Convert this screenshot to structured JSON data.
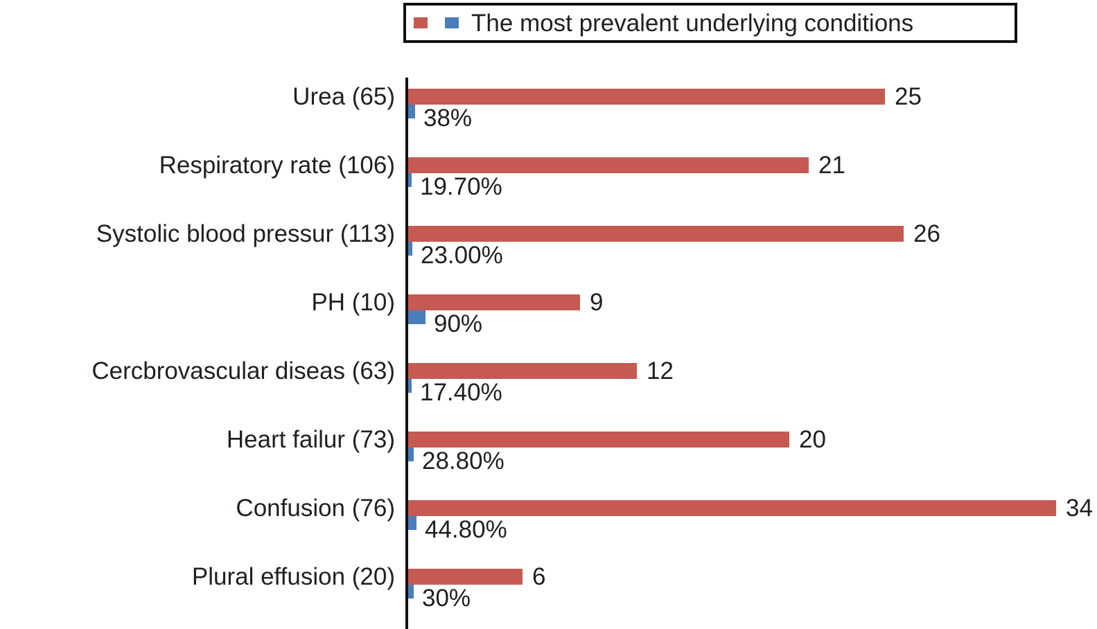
{
  "legend": {
    "title": "The most prevalent underlying conditions",
    "markers": [
      {
        "name": "count-marker",
        "color": "#C55A52"
      },
      {
        "name": "percent-marker",
        "color": "#4A7EBB"
      }
    ]
  },
  "chart_data": {
    "type": "bar",
    "orientation": "horizontal",
    "title": "The most prevalent underlying conditions",
    "xlabel": "",
    "ylabel": "",
    "xlim": [
      0,
      36
    ],
    "grid": false,
    "legend_position": "top",
    "categories": [
      "Urea (65)",
      "Respiratory rate (106)",
      "Systolic blood pressur (113)",
      "PH (10)",
      "Cercbrovascular diseas (63)",
      "Heart failur (73)",
      "Confusion (76)",
      "Plural effusion (20)"
    ],
    "series": [
      {
        "name": "count",
        "color": "#C55A52",
        "values": [
          25,
          21,
          26,
          9,
          12,
          20,
          34,
          6
        ]
      },
      {
        "name": "percent",
        "color": "#4A7EBB",
        "values": [
          38,
          19.7,
          23.0,
          90,
          17.4,
          28.8,
          44.8,
          30
        ]
      }
    ],
    "rows": [
      {
        "label": "Urea (65)",
        "count": 25,
        "count_label": "25",
        "percent": 38,
        "percent_label": "38%"
      },
      {
        "label": "Respiratory rate (106)",
        "count": 21,
        "count_label": "21",
        "percent": 19.7,
        "percent_label": "19.70%"
      },
      {
        "label": "Systolic blood pressur (113)",
        "count": 26,
        "count_label": "26",
        "percent": 23.0,
        "percent_label": "23.00%"
      },
      {
        "label": "PH (10)",
        "count": 9,
        "count_label": "9",
        "percent": 90,
        "percent_label": "90%"
      },
      {
        "label": "Cercbrovascular diseas (63)",
        "count": 12,
        "count_label": "12",
        "percent": 17.4,
        "percent_label": "17.40%"
      },
      {
        "label": "Heart failur (73)",
        "count": 20,
        "count_label": "20",
        "percent": 28.8,
        "percent_label": "28.80%"
      },
      {
        "label": "Confusion (76)",
        "count": 34,
        "count_label": "34",
        "percent": 44.8,
        "percent_label": "44.80%"
      },
      {
        "label": "Plural effusion (20)",
        "count": 6,
        "count_label": "6",
        "percent": 30,
        "percent_label": "30%"
      }
    ],
    "colors": {
      "count_bar": "#C55A52",
      "percent_bar": "#4A7EBB",
      "axis": "#111111",
      "text": "#231f20"
    }
  }
}
